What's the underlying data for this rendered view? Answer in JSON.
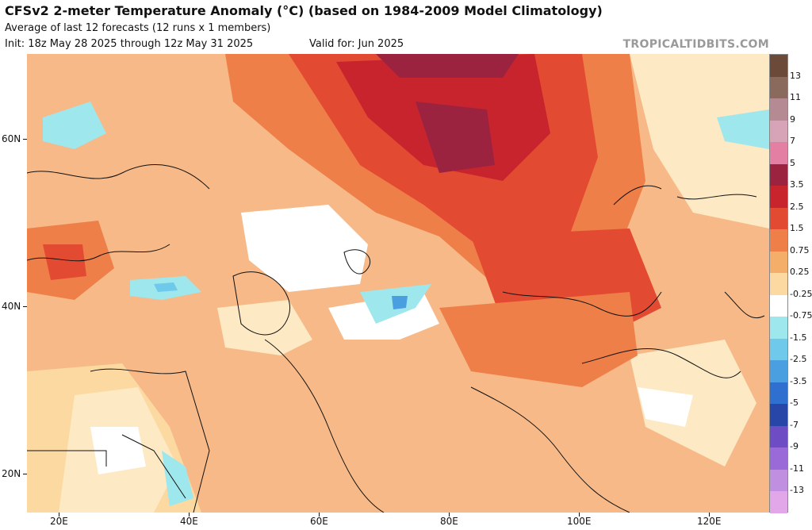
{
  "header": {
    "title": "CFSv2 2-meter Temperature Anomaly (°C) (based on 1984-2009 Model Climatology)",
    "subtitle": "Average of last 12 forecasts (12 runs x 1 members)",
    "init": "Init: 18z May 28 2025 through 12z May 31 2025",
    "valid": "Valid for: Jun 2025",
    "brand": "TROPICALTIDBITS.COM"
  },
  "map": {
    "lat_labels": [
      "60N",
      "40N",
      "20N"
    ],
    "lon_labels": [
      "20E",
      "40E",
      "60E",
      "80E",
      "100E",
      "120E"
    ]
  },
  "colorbar": {
    "labels": [
      "13",
      "11",
      "9",
      "7",
      "5",
      "3.5",
      "2.5",
      "1.5",
      "0.75",
      "0.25",
      "-0.25",
      "-0.75",
      "-1.5",
      "-2.5",
      "-3.5",
      "-5",
      "-7",
      "-9",
      "-11",
      "-13"
    ],
    "colors": [
      "#6b4a3a",
      "#8a6a5c",
      "#b58a92",
      "#d7a3b6",
      "#e37fa2",
      "#9c2340",
      "#c8242e",
      "#e34a32",
      "#ee7f48",
      "#f5ad6a",
      "#fbd9a0",
      "#ffffff",
      "#9ee7ec",
      "#6ec9ea",
      "#4a9fe0",
      "#2f6fd0",
      "#2846a8",
      "#6d4cc4",
      "#9a6ad8",
      "#c08fe0",
      "#e2a7e8"
    ]
  }
}
